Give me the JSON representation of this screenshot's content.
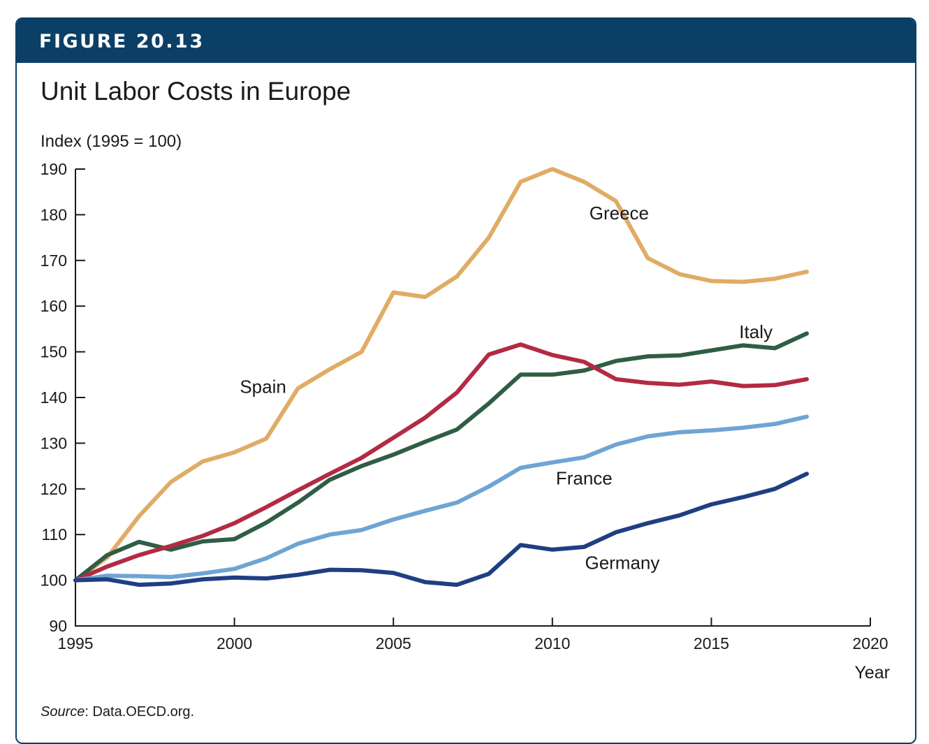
{
  "figure": {
    "label": "FIGURE 20.13",
    "source_label": "Source",
    "source_text": ": Data.OECD.org."
  },
  "chart_data": {
    "type": "line",
    "title": "Unit Labor Costs in Europe",
    "ylabel": "Index (1995 = 100)",
    "xlabel": "Year",
    "xlim": [
      1995,
      2020
    ],
    "ylim": [
      90,
      190
    ],
    "xticks": [
      1995,
      2000,
      2005,
      2010,
      2015,
      2020
    ],
    "yticks": [
      90,
      100,
      110,
      120,
      130,
      140,
      150,
      160,
      170,
      180,
      190
    ],
    "grid": false,
    "series": [
      {
        "name": "Greece",
        "color": "#e0ac65",
        "label_at": [
          2012.1,
          179
        ],
        "x": [
          1995,
          1996,
          1997,
          1998,
          1999,
          2000,
          2001,
          2002,
          2003,
          2004,
          2005,
          2006,
          2007,
          2008,
          2009,
          2010,
          2011,
          2012,
          2013,
          2014,
          2015,
          2016,
          2017,
          2018
        ],
        "values": [
          100,
          105,
          114,
          121.5,
          126,
          128,
          131,
          142,
          146.2,
          150,
          163,
          162,
          166.5,
          175,
          187.2,
          190,
          187.2,
          183,
          170.5,
          167,
          165.5,
          165.3,
          166,
          167.5
        ]
      },
      {
        "name": "Italy",
        "color": "#2f5d45",
        "label_at": [
          2016.4,
          153
        ],
        "x": [
          1995,
          1996,
          1997,
          1998,
          1999,
          2000,
          2001,
          2002,
          2003,
          2004,
          2005,
          2006,
          2007,
          2008,
          2009,
          2010,
          2011,
          2012,
          2013,
          2014,
          2015,
          2016,
          2017,
          2018
        ],
        "values": [
          100,
          105.5,
          108.4,
          106.7,
          108.5,
          109,
          112.6,
          117,
          122,
          125,
          127.5,
          130.3,
          133,
          138.7,
          145,
          145,
          145.9,
          148,
          149,
          149.2,
          150.3,
          151.4,
          150.8,
          154
        ]
      },
      {
        "name": "Spain",
        "color": "#b22b43",
        "label_at": [
          2000.9,
          141
        ],
        "x": [
          1995,
          1996,
          1997,
          1998,
          1999,
          2000,
          2001,
          2002,
          2003,
          2004,
          2005,
          2006,
          2007,
          2008,
          2009,
          2010,
          2011,
          2012,
          2013,
          2014,
          2015,
          2016,
          2017,
          2018
        ],
        "values": [
          100,
          103,
          105.5,
          107.5,
          109.7,
          112.5,
          116,
          119.7,
          123.3,
          126.8,
          131.2,
          135.6,
          141.1,
          149.4,
          151.6,
          149.3,
          147.8,
          144,
          143.2,
          142.8,
          143.5,
          142.5,
          142.7,
          144
        ]
      },
      {
        "name": "France",
        "color": "#6fa4d3",
        "label_at": [
          2011,
          121
        ],
        "x": [
          1995,
          1996,
          1997,
          1998,
          1999,
          2000,
          2001,
          2002,
          2003,
          2004,
          2005,
          2006,
          2007,
          2008,
          2009,
          2010,
          2011,
          2012,
          2013,
          2014,
          2015,
          2016,
          2017,
          2018
        ],
        "values": [
          100,
          101,
          100.9,
          100.7,
          101.5,
          102.5,
          104.8,
          108,
          110,
          111,
          113.3,
          115.2,
          117,
          120.5,
          124.6,
          125.8,
          126.9,
          129.7,
          131.5,
          132.4,
          132.8,
          133.4,
          134.2,
          135.8
        ]
      },
      {
        "name": "Germany",
        "color": "#1f3f83",
        "label_at": [
          2012.2,
          102.5
        ],
        "x": [
          1995,
          1996,
          1997,
          1998,
          1999,
          2000,
          2001,
          2002,
          2003,
          2004,
          2005,
          2006,
          2007,
          2008,
          2009,
          2010,
          2011,
          2012,
          2013,
          2014,
          2015,
          2016,
          2017,
          2018
        ],
        "values": [
          100,
          100.2,
          99,
          99.3,
          100.2,
          100.6,
          100.4,
          101.2,
          102.3,
          102.2,
          101.6,
          99.6,
          99,
          101.4,
          107.7,
          106.7,
          107.3,
          110.5,
          112.5,
          114.2,
          116.6,
          118.2,
          120,
          123.3
        ]
      }
    ]
  }
}
